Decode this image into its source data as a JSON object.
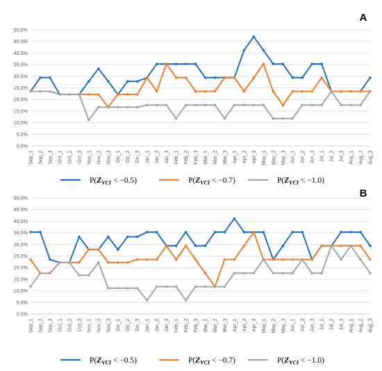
{
  "chart_data": [
    {
      "type": "line",
      "panel_label": "A",
      "categories": [
        "Sep_1",
        "Sep_2",
        "Sep_3",
        "Oct_1",
        "Oct_2",
        "Oct_3",
        "Nov_1",
        "Nov_2",
        "Nov_3",
        "Dic_1",
        "Dic_2",
        "Dic_3",
        "Jan_1",
        "Jan_2",
        "Jan_3",
        "Feb_1",
        "Feb_2",
        "Feb_3",
        "Mar_1",
        "Mar_2",
        "Mar_3",
        "Apr_1",
        "Apr_2",
        "Apr_3",
        "May_1",
        "May_2",
        "May_3",
        "Jun_1",
        "Jun_2",
        "Jun_3",
        "Jul_1",
        "Jul_2",
        "Jul_3",
        "Aug_1",
        "Aug_2",
        "Aug_3"
      ],
      "ylim": [
        0,
        50
      ],
      "yticks": [
        "0.0%",
        "5.0%",
        "10.0%",
        "15.0%",
        "20.0%",
        "25.0%",
        "30.0%",
        "35.0%",
        "40.0%",
        "45.0%",
        "50.0%"
      ],
      "grid": true,
      "legend_position": "bottom",
      "series": [
        {
          "name": "P(Z_VCI < −0.5)",
          "color": "#1f6fc6",
          "values": [
            23.5,
            29.4,
            29.4,
            22.2,
            22.2,
            22.2,
            27.8,
            33.3,
            27.8,
            22.2,
            27.8,
            27.8,
            29.4,
            35.3,
            35.3,
            35.3,
            35.3,
            35.3,
            29.4,
            29.4,
            29.4,
            29.4,
            41.2,
            47.1,
            41.2,
            35.3,
            35.3,
            29.4,
            29.4,
            35.3,
            35.3,
            23.5,
            23.5,
            23.5,
            23.5,
            29.4
          ]
        },
        {
          "name": "P(Z_VCI < −0.7)",
          "color": "#ed7d31",
          "values": [
            23.5,
            23.5,
            23.5,
            22.2,
            22.2,
            22.2,
            22.2,
            22.2,
            16.7,
            22.2,
            22.2,
            22.2,
            29.4,
            23.5,
            35.3,
            29.4,
            29.4,
            23.5,
            23.5,
            23.5,
            29.4,
            29.4,
            23.5,
            29.4,
            35.3,
            23.5,
            17.6,
            23.5,
            23.5,
            23.5,
            29.4,
            23.5,
            23.5,
            23.5,
            23.5,
            23.5
          ]
        },
        {
          "name": "P(Z_VCI < −1.0)",
          "color": "#a5a5a5",
          "values": [
            23.5,
            23.5,
            23.5,
            22.2,
            22.2,
            22.2,
            11.1,
            16.7,
            16.7,
            16.7,
            16.7,
            16.7,
            17.6,
            17.6,
            17.6,
            11.8,
            17.6,
            17.6,
            17.6,
            17.6,
            11.8,
            17.6,
            17.6,
            17.6,
            17.6,
            11.8,
            11.8,
            11.8,
            17.6,
            17.6,
            17.6,
            23.5,
            17.6,
            17.6,
            17.6,
            23.5
          ]
        }
      ]
    },
    {
      "type": "line",
      "panel_label": "B",
      "categories": [
        "Sep_1",
        "Sep_2",
        "Sep_3",
        "Oct_1",
        "Oct_2",
        "Oct_3",
        "Nov_1",
        "Nov_2",
        "Nov_3",
        "Dic_1",
        "Dic_2",
        "Dic_3",
        "Jan_1",
        "Jan_2",
        "Jan_3",
        "Feb_1",
        "Feb_2",
        "Feb_3",
        "Mar_1",
        "Mar_2",
        "Mar_3",
        "Apr_1",
        "Apr_2",
        "Apr_3",
        "May_1",
        "May_2",
        "May_3",
        "Jun_1",
        "Jun_2",
        "Jun_3",
        "Jul_1",
        "Jul_2",
        "Jul_3",
        "Aug_1",
        "Aug_2",
        "Aug_3"
      ],
      "ylim": [
        0,
        50
      ],
      "yticks": [
        "0.0%",
        "5.0%",
        "10.0%",
        "15.0%",
        "20.0%",
        "25.0%",
        "30.0%",
        "35.0%",
        "40.0%",
        "45.0%",
        "50.0%"
      ],
      "grid": true,
      "legend_position": "bottom",
      "series": [
        {
          "name": "P(Z_VCI < −0.5)",
          "color": "#1f6fc6",
          "values": [
            35.3,
            35.3,
            23.5,
            22.2,
            22.2,
            33.3,
            27.8,
            27.8,
            33.3,
            27.8,
            33.3,
            33.3,
            35.3,
            35.3,
            29.4,
            29.4,
            35.3,
            29.4,
            29.4,
            35.3,
            35.3,
            41.2,
            35.3,
            35.3,
            35.3,
            23.5,
            29.4,
            35.3,
            35.3,
            23.5,
            29.4,
            29.4,
            35.3,
            35.3,
            35.3,
            29.4
          ]
        },
        {
          "name": "P(Z_VCI < −0.7)",
          "color": "#ed7d31",
          "values": [
            23.5,
            17.6,
            17.6,
            22.2,
            22.2,
            22.2,
            27.8,
            27.8,
            22.2,
            22.2,
            22.2,
            23.5,
            23.5,
            23.5,
            29.4,
            23.5,
            29.4,
            23.5,
            17.6,
            11.8,
            23.5,
            23.5,
            29.4,
            35.3,
            23.5,
            23.5,
            23.5,
            23.5,
            23.5,
            23.5,
            29.4,
            29.4,
            29.4,
            29.4,
            29.4,
            23.5
          ]
        },
        {
          "name": "P(Z_VCI < −1.0)",
          "color": "#a5a5a5",
          "values": [
            11.8,
            17.6,
            17.6,
            22.2,
            22.2,
            16.7,
            16.7,
            22.2,
            11.1,
            11.1,
            11.1,
            11.1,
            5.9,
            11.8,
            11.8,
            11.8,
            5.9,
            11.8,
            11.8,
            11.8,
            11.8,
            17.6,
            17.6,
            17.6,
            23.5,
            17.6,
            17.6,
            17.6,
            23.5,
            17.6,
            17.6,
            29.4,
            23.5,
            29.4,
            23.5,
            17.6
          ]
        }
      ]
    }
  ],
  "legend": [
    {
      "prefix": "P(",
      "var": "Z",
      "sub": "VCI",
      "suffix": " < −0.5)",
      "color": "#1f6fc6"
    },
    {
      "prefix": "P(",
      "var": "Z",
      "sub": "VCI",
      "suffix": " < −0.7)",
      "color": "#ed7d31"
    },
    {
      "prefix": "P(",
      "var": "Z",
      "sub": "VCI",
      "suffix": " < −1.0)",
      "color": "#a5a5a5"
    }
  ]
}
